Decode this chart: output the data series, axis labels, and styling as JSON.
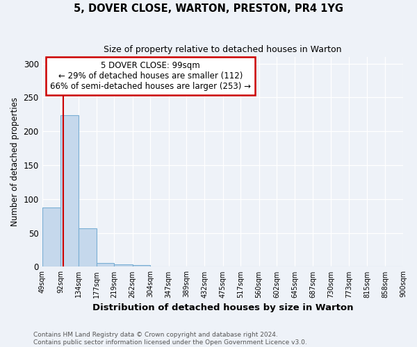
{
  "title1": "5, DOVER CLOSE, WARTON, PRESTON, PR4 1YG",
  "title2": "Size of property relative to detached houses in Warton",
  "xlabel": "Distribution of detached houses by size in Warton",
  "ylabel": "Number of detached properties",
  "footnote": "Contains HM Land Registry data © Crown copyright and database right 2024.\nContains public sector information licensed under the Open Government Licence v3.0.",
  "bin_edges": [
    49,
    92,
    134,
    177,
    219,
    262,
    304,
    347,
    389,
    432,
    475,
    517,
    560,
    602,
    645,
    687,
    730,
    773,
    815,
    858,
    900
  ],
  "bar_heights": [
    88,
    224,
    57,
    6,
    4,
    3,
    0,
    0,
    0,
    0,
    0,
    0,
    0,
    0,
    0,
    0,
    0,
    0,
    0,
    0
  ],
  "bar_color": "#c5d8ec",
  "bar_edge_color": "#7aafd4",
  "ylim": [
    0,
    310
  ],
  "yticks": [
    0,
    50,
    100,
    150,
    200,
    250,
    300
  ],
  "property_size": 99,
  "vline_color": "#cc0000",
  "annotation_text": "5 DOVER CLOSE: 99sqm\n← 29% of detached houses are smaller (112)\n66% of semi-detached houses are larger (253) →",
  "annotation_box_color": "#ffffff",
  "annotation_border_color": "#cc0000",
  "bg_color": "#eef2f8",
  "grid_color": "#ffffff",
  "footnote_color": "#555555"
}
